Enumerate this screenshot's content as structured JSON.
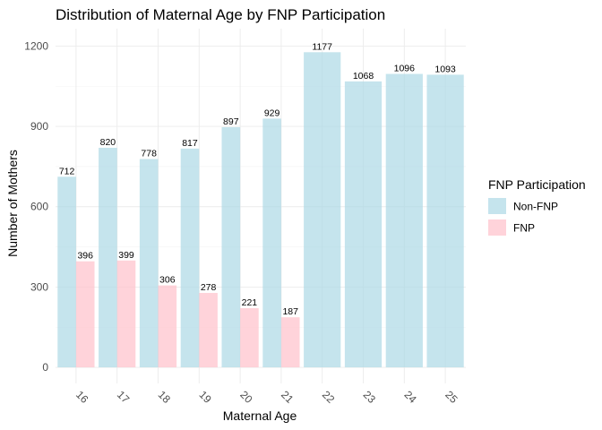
{
  "chart_data": {
    "type": "bar",
    "title": "Distribution of Maternal Age by FNP Participation",
    "xlabel": "Maternal Age",
    "ylabel": "Number of Mothers",
    "categories": [
      "16",
      "17",
      "18",
      "19",
      "20",
      "21",
      "22",
      "23",
      "24",
      "25"
    ],
    "series": [
      {
        "name": "Non-FNP",
        "color": "#add8e6",
        "values": [
          712,
          820,
          778,
          817,
          897,
          929,
          1177,
          1068,
          1096,
          1093
        ]
      },
      {
        "name": "FNP",
        "color": "#ffc0cb",
        "values": [
          396,
          399,
          306,
          278,
          221,
          187,
          null,
          null,
          null,
          null
        ]
      }
    ],
    "yticks": [
      "0",
      "300",
      "600",
      "900",
      "1200"
    ],
    "ylim": [
      -60,
      1265
    ],
    "grid": true,
    "legend": {
      "title": "FNP Participation",
      "position": "right"
    }
  }
}
